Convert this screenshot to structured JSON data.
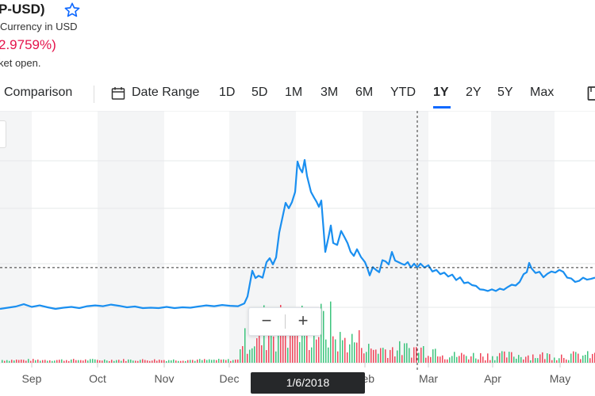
{
  "header": {
    "title": "P-USD)",
    "currency": "Currency in USD",
    "change": "2.9759%)",
    "market_status": "ket open."
  },
  "toolbar": {
    "comparison": "Comparison",
    "date_range": "Date Range",
    "ranges": [
      "1D",
      "5D",
      "1M",
      "3M",
      "6M",
      "YTD",
      "1Y",
      "2Y",
      "5Y",
      "Max"
    ],
    "active_range": "1Y"
  },
  "tooltip": {
    "date": "1/6/2018"
  },
  "zoom": {
    "minus": "−",
    "plus": "+"
  },
  "colors": {
    "line": "#1a8ff0",
    "volume_up": "#3cc47c",
    "volume_down": "#f0465a",
    "accent": "#0f69ff"
  },
  "chart_data": {
    "type": "line",
    "x_labels": [
      "Sep",
      "Oct",
      "Nov",
      "Dec",
      "Feb",
      "Mar",
      "Apr",
      "May"
    ],
    "line": [
      [
        0,
        0.0
      ],
      [
        10,
        0.3
      ],
      [
        20,
        0.6
      ],
      [
        30,
        1.2
      ],
      [
        40,
        0.5
      ],
      [
        50,
        0.9
      ],
      [
        60,
        0.4
      ],
      [
        70,
        0.0
      ],
      [
        80,
        0.3
      ],
      [
        90,
        0.5
      ],
      [
        100,
        0.2
      ],
      [
        110,
        0.7
      ],
      [
        120,
        0.9
      ],
      [
        130,
        0.7
      ],
      [
        140,
        1.1
      ],
      [
        150,
        0.8
      ],
      [
        160,
        0.4
      ],
      [
        170,
        0.6
      ],
      [
        180,
        0.2
      ],
      [
        190,
        0.3
      ],
      [
        200,
        0.2
      ],
      [
        210,
        0.5
      ],
      [
        220,
        0.2
      ],
      [
        230,
        0.4
      ],
      [
        240,
        0.3
      ],
      [
        250,
        0.6
      ],
      [
        260,
        0.9
      ],
      [
        270,
        0.7
      ],
      [
        280,
        1.0
      ],
      [
        290,
        0.8
      ],
      [
        300,
        0.7
      ],
      [
        308,
        1.4
      ],
      [
        312,
        3.2
      ],
      [
        318,
        9.8
      ],
      [
        322,
        7.9
      ],
      [
        326,
        8.5
      ],
      [
        331,
        8.0
      ],
      [
        336,
        12.0
      ],
      [
        340,
        13.0
      ],
      [
        344,
        11.4
      ],
      [
        348,
        13.2
      ],
      [
        352,
        19.6
      ],
      [
        356,
        23.4
      ],
      [
        360,
        27.2
      ],
      [
        364,
        25.8
      ],
      [
        368,
        27.4
      ],
      [
        372,
        30.0
      ],
      [
        375,
        37.8
      ],
      [
        378,
        36.0
      ],
      [
        381,
        35.0
      ],
      [
        384,
        38.2
      ],
      [
        387,
        34.1
      ],
      [
        392,
        30.0
      ],
      [
        396,
        28.5
      ],
      [
        399,
        27.5
      ],
      [
        402,
        26.2
      ],
      [
        405,
        27.8
      ],
      [
        408,
        20.0
      ],
      [
        410,
        14.6
      ],
      [
        414,
        18.3
      ],
      [
        417,
        21.4
      ],
      [
        420,
        16.9
      ],
      [
        425,
        16.4
      ],
      [
        430,
        20.0
      ],
      [
        434,
        18.5
      ],
      [
        438,
        16.9
      ],
      [
        442,
        14.6
      ],
      [
        446,
        13.6
      ],
      [
        450,
        15.3
      ],
      [
        455,
        13.3
      ],
      [
        460,
        12.0
      ],
      [
        463,
        10.5
      ],
      [
        466,
        8.6
      ],
      [
        470,
        10.7
      ],
      [
        474,
        10.0
      ],
      [
        478,
        9.4
      ],
      [
        482,
        12.5
      ],
      [
        486,
        12.2
      ],
      [
        490,
        11.4
      ],
      [
        494,
        14.6
      ],
      [
        498,
        12.4
      ],
      [
        502,
        12.0
      ],
      [
        506,
        11.6
      ],
      [
        510,
        11.3
      ],
      [
        514,
        12.0
      ],
      [
        518,
        10.6
      ],
      [
        522,
        11.6
      ],
      [
        526,
        10.6
      ],
      [
        530,
        11.6
      ],
      [
        535,
        10.6
      ],
      [
        540,
        11.2
      ],
      [
        545,
        9.6
      ],
      [
        550,
        10.0
      ],
      [
        555,
        8.9
      ],
      [
        560,
        9.3
      ],
      [
        565,
        8.3
      ],
      [
        570,
        8.8
      ],
      [
        575,
        7.4
      ],
      [
        580,
        8.1
      ],
      [
        585,
        6.6
      ],
      [
        590,
        6.8
      ],
      [
        595,
        6.1
      ],
      [
        600,
        5.9
      ],
      [
        605,
        5.0
      ],
      [
        610,
        4.9
      ],
      [
        615,
        4.6
      ],
      [
        620,
        5.0
      ],
      [
        625,
        4.6
      ],
      [
        630,
        5.2
      ],
      [
        635,
        4.9
      ],
      [
        640,
        5.6
      ],
      [
        645,
        6.2
      ],
      [
        650,
        6.0
      ],
      [
        655,
        6.9
      ],
      [
        660,
        8.9
      ],
      [
        664,
        9.4
      ],
      [
        667,
        11.8
      ],
      [
        670,
        10.4
      ],
      [
        675,
        9.2
      ],
      [
        680,
        9.5
      ],
      [
        685,
        8.1
      ],
      [
        690,
        9.0
      ],
      [
        695,
        9.6
      ],
      [
        700,
        9.3
      ],
      [
        705,
        10.0
      ],
      [
        710,
        9.5
      ],
      [
        715,
        8.0
      ],
      [
        720,
        7.8
      ],
      [
        725,
        6.9
      ],
      [
        730,
        7.2
      ],
      [
        735,
        8.0
      ],
      [
        740,
        7.5
      ],
      [
        745,
        7.7
      ],
      [
        750,
        8.0
      ]
    ],
    "tooltip_index": 87
  }
}
